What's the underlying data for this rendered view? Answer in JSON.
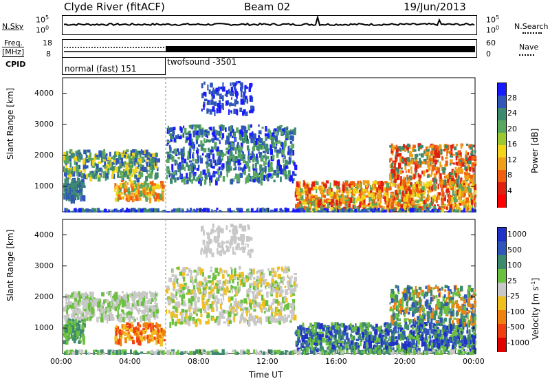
{
  "header": {
    "station": "Clyde River (fitACF)",
    "beam": "Beam 02",
    "date": "19/Jun/2013"
  },
  "panels": {
    "nsky": {
      "label": "N.Sky",
      "ticks_left": [
        "10^5",
        "10^0"
      ],
      "ticks_right": [
        "10^5",
        "10^0"
      ],
      "right_label": "N.Search"
    },
    "freq": {
      "label_line1": "Freq.",
      "label_line2": "[MHz]",
      "ticks_left": [
        "18",
        "8"
      ],
      "ticks_right": [
        "60",
        "0"
      ],
      "right_label": "Nave"
    },
    "cpid": {
      "label": "CPID",
      "modes": [
        "normal (fast) 151",
        "twofsound -3501"
      ]
    }
  },
  "chart_data": [
    {
      "type": "heatmap",
      "title": "",
      "quantity": "Power",
      "ylabel": "Slant Range [km]",
      "xlabel": "",
      "x_ticks": [
        "00:00",
        "04:00",
        "08:00",
        "12:00",
        "16:00",
        "20:00",
        "00:00"
      ],
      "y_ticks": [
        "1000",
        "2000",
        "3000",
        "4000"
      ],
      "ylim": [
        180,
        4500
      ],
      "colorbar": {
        "label": "Power [dB]",
        "ticks": [
          "4",
          "8",
          "12",
          "16",
          "20",
          "24",
          "28"
        ],
        "colors": [
          "#1a1aff",
          "#2f56b8",
          "#3e8a6e",
          "#5aa860",
          "#9cc830",
          "#f2d418",
          "#f0a018",
          "#f06010",
          "#e02010",
          "#ff0000"
        ]
      }
    },
    {
      "type": "heatmap",
      "title": "",
      "quantity": "Velocity",
      "ylabel": "Slant Range [km]",
      "xlabel": "Time UT",
      "x_ticks": [
        "00:00",
        "04:00",
        "08:00",
        "12:00",
        "16:00",
        "20:00",
        "00:00"
      ],
      "y_ticks": [
        "1000",
        "2000",
        "3000",
        "4000"
      ],
      "ylim": [
        180,
        4500
      ],
      "colorbar": {
        "label": "Velocity [m s^-1]",
        "ticks": [
          "1000",
          "500",
          "100",
          "25",
          "-25",
          "-100",
          "-500",
          "-1000"
        ],
        "colors": [
          "#2030c8",
          "#2f56b8",
          "#3e8a6e",
          "#6cc040",
          "#c8c8c8",
          "#f0c020",
          "#f08010",
          "#f04010",
          "#e00000"
        ]
      }
    }
  ]
}
